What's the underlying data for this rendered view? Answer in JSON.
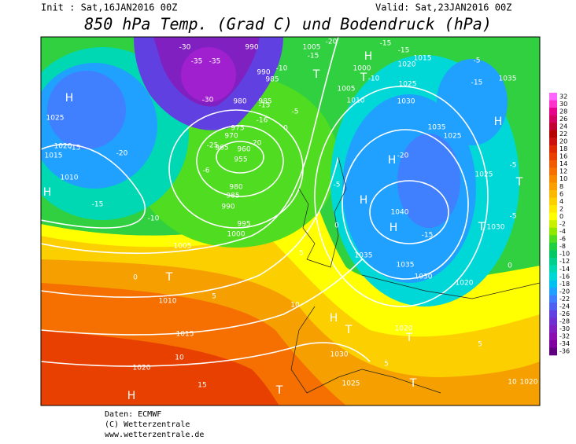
{
  "header": {
    "init": "Init : Sat,16JAN2016 00Z",
    "valid": "Valid: Sat,23JAN2016 00Z",
    "title": "850 hPa Temp. (Grad C) und Bodendruck (hPa)"
  },
  "footer": {
    "source": "Daten: ECMWF",
    "copyright": "(C) Wetterzentrale",
    "url": "www.wetterzentrale.de"
  },
  "legend": {
    "values": [
      32,
      30,
      28,
      26,
      24,
      22,
      20,
      18,
      16,
      14,
      12,
      10,
      8,
      6,
      4,
      2,
      0,
      -2,
      -4,
      -6,
      -8,
      -10,
      -12,
      -14,
      -16,
      -18,
      -20,
      -22,
      -24,
      -26,
      -28,
      -30,
      -32,
      -34,
      -36
    ],
    "colors": [
      "#ff66ff",
      "#ff33cc",
      "#e6008a",
      "#d40060",
      "#c00030",
      "#b40000",
      "#cc1010",
      "#dd2a00",
      "#e84000",
      "#f05a00",
      "#f57000",
      "#f88a00",
      "#faa000",
      "#fbb800",
      "#fcd000",
      "#ffe800",
      "#ffff00",
      "#c8f000",
      "#90e800",
      "#50dc20",
      "#20d040",
      "#00c864",
      "#00d08c",
      "#00d8b4",
      "#00d8d8",
      "#00c0f0",
      "#20a0ff",
      "#4080ff",
      "#5060f0",
      "#6040e0",
      "#7030d0",
      "#8020c0",
      "#8a10b0",
      "#8000a0",
      "#600080"
    ]
  },
  "map_labels": [
    "H",
    "1025",
    "-15",
    "1020",
    "1015",
    "-20",
    "1010",
    "H",
    "-15",
    "-10",
    "-6",
    "980",
    "985",
    "990",
    "995",
    "1000",
    "1005",
    "0",
    "T",
    "1010",
    "5",
    "1015",
    "10",
    "1020",
    "15",
    "H",
    "990",
    "990",
    "985",
    "985",
    "980",
    "-30",
    "-35",
    "-35",
    "-30",
    "975",
    "970",
    "965",
    "960",
    "955",
    "-25",
    "-20",
    "-16",
    "-15",
    "-10",
    "T",
    "-5",
    "0",
    "1005",
    "-15",
    "-20",
    "1000",
    "1005",
    "1010",
    "-15",
    "-10",
    "1015",
    "1020",
    "1025",
    "1030",
    "-15",
    "H",
    "T",
    "-15",
    "-5",
    "1035",
    "H",
    "1035",
    "1025",
    "-20",
    "H",
    "-5",
    "H",
    "1040",
    "H",
    "-15",
    "T",
    "1030",
    "-5",
    "T",
    "-5",
    "1025",
    "1035",
    "1035",
    "1030",
    "1020",
    "0",
    "5",
    "10",
    "H",
    "T",
    "1020",
    "T",
    "1030",
    "5",
    "5",
    "1025",
    "T",
    "T",
    "10",
    "1020",
    "0"
  ]
}
